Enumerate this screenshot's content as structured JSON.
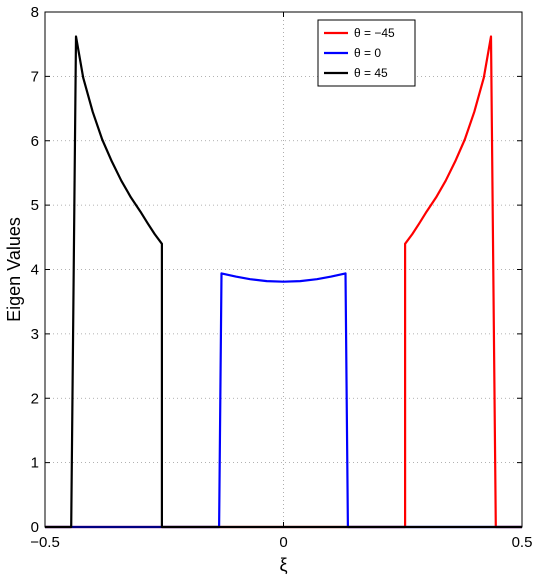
{
  "chart_data": {
    "type": "line",
    "title": "",
    "xlabel": "ξ",
    "ylabel": "Eigen Values",
    "xlim": [
      -0.5,
      0.5
    ],
    "ylim": [
      0,
      8
    ],
    "xticks": [
      -0.5,
      0,
      0.5
    ],
    "xtick_labels": [
      "−0.5",
      "0",
      "0.5"
    ],
    "yticks": [
      0,
      1,
      2,
      3,
      4,
      5,
      6,
      7,
      8
    ],
    "ytick_labels": [
      "0",
      "1",
      "2",
      "3",
      "4",
      "5",
      "6",
      "7",
      "8"
    ],
    "grid": true,
    "grid_style": "dotted",
    "legend_position": "top-right",
    "series": [
      {
        "name": "θ = −45",
        "color": "#ff0000",
        "points": [
          [
            -0.5,
            0
          ],
          [
            0.255,
            0
          ],
          [
            0.255,
            4.4
          ],
          [
            0.27,
            4.55
          ],
          [
            0.285,
            4.72
          ],
          [
            0.3,
            4.9
          ],
          [
            0.32,
            5.12
          ],
          [
            0.34,
            5.38
          ],
          [
            0.36,
            5.68
          ],
          [
            0.38,
            6.02
          ],
          [
            0.4,
            6.45
          ],
          [
            0.42,
            6.98
          ],
          [
            0.435,
            7.62
          ],
          [
            0.445,
            0
          ],
          [
            0.5,
            0
          ]
        ]
      },
      {
        "name": "θ = 0",
        "color": "#0000ff",
        "points": [
          [
            -0.5,
            0
          ],
          [
            -0.135,
            0
          ],
          [
            -0.13,
            3.94
          ],
          [
            -0.1,
            3.89
          ],
          [
            -0.07,
            3.85
          ],
          [
            -0.035,
            3.82
          ],
          [
            0,
            3.81
          ],
          [
            0.035,
            3.82
          ],
          [
            0.07,
            3.85
          ],
          [
            0.1,
            3.89
          ],
          [
            0.13,
            3.94
          ],
          [
            0.135,
            0
          ],
          [
            0.5,
            0
          ]
        ]
      },
      {
        "name": "θ = 45",
        "color": "#000000",
        "points": [
          [
            -0.5,
            0
          ],
          [
            -0.445,
            0
          ],
          [
            -0.435,
            7.62
          ],
          [
            -0.42,
            6.98
          ],
          [
            -0.4,
            6.45
          ],
          [
            -0.38,
            6.02
          ],
          [
            -0.36,
            5.68
          ],
          [
            -0.34,
            5.38
          ],
          [
            -0.32,
            5.12
          ],
          [
            -0.3,
            4.9
          ],
          [
            -0.285,
            4.72
          ],
          [
            -0.27,
            4.55
          ],
          [
            -0.255,
            4.4
          ],
          [
            -0.255,
            0
          ],
          [
            0.5,
            0
          ]
        ]
      }
    ]
  }
}
